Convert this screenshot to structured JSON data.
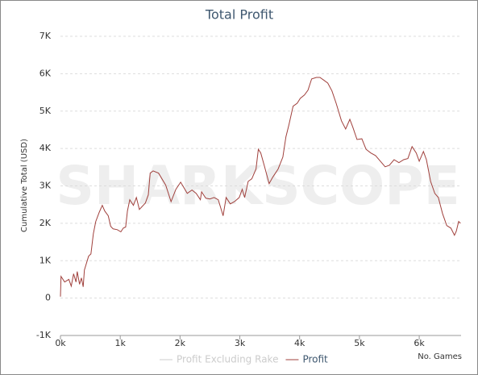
{
  "chart_data": {
    "type": "line",
    "title": "Total Profit",
    "watermark": "SHARKSCOPE",
    "y_label": "Cumulative Total (USD)",
    "x_label": "No. Games",
    "xlim": [
      0,
      6700
    ],
    "ylim": [
      -1000,
      7000
    ],
    "xticks": [
      {
        "value": 0,
        "label": "0k"
      },
      {
        "value": 1000,
        "label": "1k"
      },
      {
        "value": 2000,
        "label": "2k"
      },
      {
        "value": 3000,
        "label": "3k"
      },
      {
        "value": 4000,
        "label": "4k"
      },
      {
        "value": 5000,
        "label": "5k"
      },
      {
        "value": 6000,
        "label": "6k"
      }
    ],
    "yticks": [
      {
        "value": -1000,
        "label": "-1K"
      },
      0,
      {
        "value": 1000,
        "label": "1K"
      },
      {
        "value": 2000,
        "label": "2K"
      },
      {
        "value": 3000,
        "label": "3K"
      },
      {
        "value": 4000,
        "label": "4K"
      },
      {
        "value": 5000,
        "label": "5K"
      },
      {
        "value": 6000,
        "label": "6K"
      },
      {
        "value": 7000,
        "label": "7K"
      }
    ],
    "grid": true,
    "legend": "bottom",
    "x": [
      0,
      10,
      70,
      140,
      180,
      220,
      260,
      280,
      320,
      350,
      380,
      400,
      470,
      510,
      550,
      590,
      650,
      700,
      740,
      800,
      840,
      880,
      950,
      1010,
      1050,
      1090,
      1120,
      1160,
      1220,
      1270,
      1320,
      1420,
      1470,
      1500,
      1550,
      1640,
      1760,
      1850,
      1930,
      2010,
      2120,
      2200,
      2270,
      2340,
      2360,
      2430,
      2500,
      2570,
      2640,
      2720,
      2770,
      2840,
      2910,
      2990,
      3040,
      3080,
      3140,
      3200,
      3270,
      3310,
      3350,
      3410,
      3490,
      3550,
      3640,
      3720,
      3770,
      3820,
      3890,
      3960,
      4010,
      4080,
      4140,
      4200,
      4280,
      4340,
      4410,
      4470,
      4540,
      4610,
      4700,
      4770,
      4840,
      4890,
      4960,
      5040,
      5110,
      5190,
      5270,
      5350,
      5430,
      5500,
      5580,
      5660,
      5740,
      5810,
      5880,
      5950,
      6000,
      6070,
      6120,
      6190,
      6260,
      6320,
      6390,
      6460,
      6530,
      6590,
      6620,
      6660,
      6690
    ],
    "series": [
      {
        "name": "Profit Excluding Rake",
        "color": "#cccccc",
        "visible": false,
        "values": null
      },
      {
        "name": "Profit",
        "color": "#a0403c",
        "visible": true,
        "values": [
          40,
          580,
          430,
          500,
          320,
          650,
          430,
          710,
          370,
          540,
          300,
          750,
          1120,
          1180,
          1720,
          2050,
          2300,
          2480,
          2330,
          2200,
          1920,
          1850,
          1830,
          1770,
          1870,
          1900,
          2330,
          2630,
          2480,
          2690,
          2370,
          2540,
          2760,
          3340,
          3400,
          3340,
          3020,
          2580,
          2910,
          3100,
          2800,
          2890,
          2800,
          2630,
          2840,
          2670,
          2650,
          2690,
          2630,
          2200,
          2690,
          2520,
          2580,
          2690,
          2910,
          2690,
          3120,
          3190,
          3450,
          3980,
          3880,
          3530,
          3060,
          3230,
          3450,
          3770,
          4310,
          4630,
          5130,
          5210,
          5340,
          5430,
          5560,
          5860,
          5900,
          5900,
          5820,
          5750,
          5540,
          5210,
          4740,
          4520,
          4780,
          4570,
          4240,
          4260,
          3980,
          3880,
          3810,
          3660,
          3510,
          3550,
          3700,
          3620,
          3700,
          3730,
          4050,
          3880,
          3660,
          3920,
          3700,
          3120,
          2800,
          2690,
          2260,
          1940,
          1870,
          1680,
          1790,
          2050,
          2000
        ]
      }
    ]
  }
}
